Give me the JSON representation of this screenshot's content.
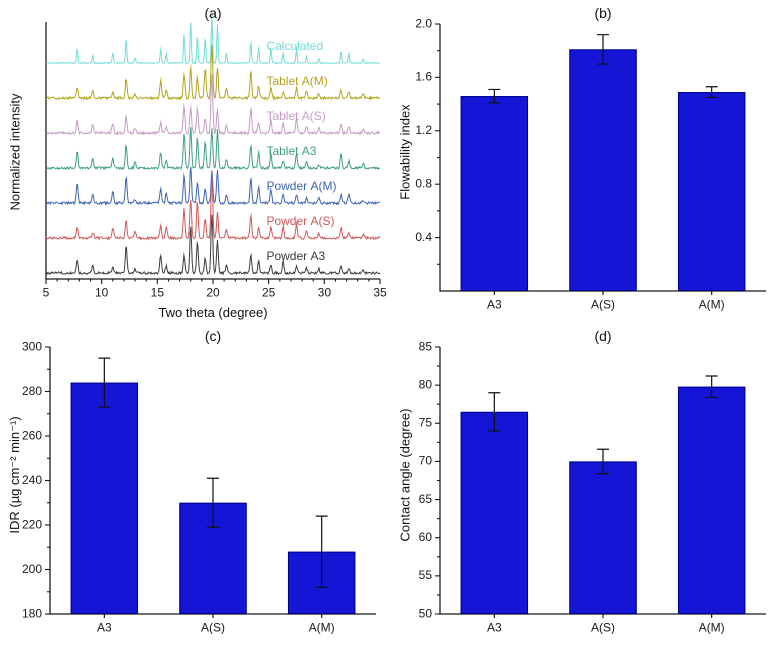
{
  "figure": {
    "background": "#ffffff",
    "bar_color": "#1515d6",
    "bar_edge_color": "#00008b",
    "axis_color": "#1a1a1a",
    "error_bar_color": "#111111"
  },
  "chart_data": [
    {
      "id": "a",
      "type": "line",
      "title": "(a)",
      "xlabel": "Two theta (degree)",
      "ylabel": "Normalized intensity",
      "xlim": [
        5,
        35
      ],
      "xticks": [
        5,
        10,
        15,
        20,
        25,
        30,
        35
      ],
      "xtick_labels": [
        "5",
        "10",
        "15",
        "20",
        "25",
        "30",
        "35"
      ],
      "series": [
        {
          "name": "Calculated",
          "color": "#6fdcd6"
        },
        {
          "name": "Tablet A(M)",
          "color": "#b3a31c"
        },
        {
          "name": "Tablet A(S)",
          "color": "#c79bc7"
        },
        {
          "name": "Tablet A3",
          "color": "#3e9e85"
        },
        {
          "name": "Powder A(M)",
          "color": "#3c64b4"
        },
        {
          "name": "Powder A(S)",
          "color": "#d05858"
        },
        {
          "name": "Powder A3",
          "color": "#3c3c3c"
        }
      ],
      "peaks": [
        [
          7.8,
          0.35
        ],
        [
          9.2,
          0.15
        ],
        [
          11.0,
          0.2
        ],
        [
          12.2,
          0.45
        ],
        [
          13.0,
          0.12
        ],
        [
          15.3,
          0.3
        ],
        [
          15.8,
          0.2
        ],
        [
          17.4,
          0.55
        ],
        [
          18.0,
          0.85
        ],
        [
          18.6,
          0.6
        ],
        [
          19.3,
          0.5
        ],
        [
          19.9,
          1.0
        ],
        [
          20.4,
          0.7
        ],
        [
          21.2,
          0.2
        ],
        [
          23.4,
          0.45
        ],
        [
          24.1,
          0.3
        ],
        [
          25.2,
          0.28
        ],
        [
          26.3,
          0.22
        ],
        [
          27.5,
          0.25
        ],
        [
          28.4,
          0.12
        ],
        [
          29.5,
          0.1
        ],
        [
          31.5,
          0.22
        ],
        [
          32.2,
          0.18
        ],
        [
          33.5,
          0.08
        ]
      ]
    },
    {
      "id": "b",
      "type": "bar",
      "title": "(b)",
      "ylabel": "Flowability index",
      "categories": [
        "A3",
        "A(S)",
        "A(M)"
      ],
      "values": [
        1.46,
        1.81,
        1.49
      ],
      "errors": [
        0.05,
        0.11,
        0.04
      ],
      "ylim": [
        0,
        2.0
      ],
      "yticks": [
        0.4,
        0.8,
        1.2,
        1.6,
        2.0
      ],
      "ytick_labels": [
        "0.4",
        "0.8",
        "1.2",
        "1.6",
        "2.0"
      ]
    },
    {
      "id": "c",
      "type": "bar",
      "title": "(c)",
      "ylabel": "IDR (µg cm⁻² min⁻¹)",
      "categories": [
        "A3",
        "A(S)",
        "A(M)"
      ],
      "values": [
        284,
        230,
        208
      ],
      "errors": [
        11,
        11,
        16
      ],
      "ylim": [
        180,
        300
      ],
      "yticks": [
        180,
        200,
        220,
        240,
        260,
        280,
        300
      ],
      "ytick_labels": [
        "180",
        "200",
        "220",
        "240",
        "260",
        "280",
        "300"
      ]
    },
    {
      "id": "d",
      "type": "bar",
      "title": "(d)",
      "ylabel": "Contact angle (degree)",
      "categories": [
        "A3",
        "A(S)",
        "A(M)"
      ],
      "values": [
        76.5,
        70.0,
        79.8
      ],
      "errors": [
        2.5,
        1.6,
        1.4
      ],
      "ylim": [
        50,
        85
      ],
      "yticks": [
        50,
        55,
        60,
        65,
        70,
        75,
        80,
        85
      ],
      "ytick_labels": [
        "50",
        "55",
        "60",
        "65",
        "70",
        "75",
        "80",
        "85"
      ]
    }
  ]
}
